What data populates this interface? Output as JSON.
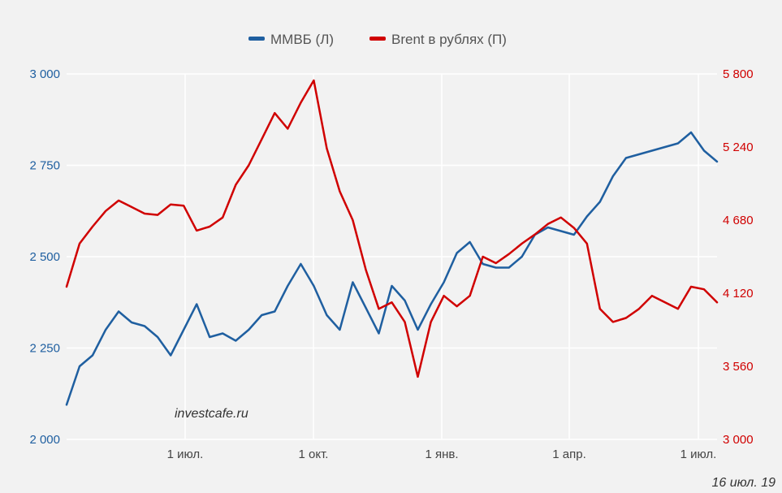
{
  "chart_data": {
    "type": "line",
    "x_tick_labels": [
      "1 июл.",
      "1 окт.",
      "1 янв.",
      "1 апр.",
      "1 июл."
    ],
    "left_axis": {
      "ylim": [
        2000,
        3000
      ],
      "ticks": [
        2000,
        2250,
        2500,
        2750,
        3000
      ],
      "tick_labels": [
        "2 000",
        "2 250",
        "2 500",
        "2 750",
        "3 000"
      ],
      "color": "#1f5fa0"
    },
    "right_axis": {
      "ylim": [
        3000,
        5800
      ],
      "ticks": [
        3000,
        3560,
        4120,
        4680,
        5240,
        5800
      ],
      "tick_labels": [
        "3 000",
        "3 560",
        "4 120",
        "4 680",
        "5 240",
        "5 800"
      ],
      "color": "#d00000"
    },
    "grid": true,
    "legend_position": "top-center",
    "series": [
      {
        "name": "ММВБ (Л)",
        "axis": "left",
        "color": "#1f5fa0",
        "x": [
          0,
          0.02,
          0.04,
          0.06,
          0.08,
          0.1,
          0.12,
          0.14,
          0.16,
          0.18,
          0.2,
          0.22,
          0.24,
          0.26,
          0.28,
          0.3,
          0.32,
          0.34,
          0.36,
          0.38,
          0.4,
          0.42,
          0.44,
          0.46,
          0.48,
          0.5,
          0.52,
          0.54,
          0.56,
          0.58,
          0.6,
          0.62,
          0.64,
          0.66,
          0.68,
          0.7,
          0.72,
          0.74,
          0.76,
          0.78,
          0.8,
          0.82,
          0.84,
          0.86,
          0.88,
          0.9,
          0.92,
          0.94,
          0.96,
          0.98,
          1.0
        ],
        "values": [
          2095,
          2200,
          2230,
          2300,
          2350,
          2320,
          2310,
          2280,
          2230,
          2300,
          2370,
          2280,
          2290,
          2270,
          2300,
          2340,
          2350,
          2420,
          2480,
          2420,
          2340,
          2300,
          2430,
          2360,
          2290,
          2420,
          2380,
          2300,
          2370,
          2430,
          2510,
          2540,
          2480,
          2470,
          2470,
          2500,
          2560,
          2580,
          2570,
          2560,
          2610,
          2650,
          2720,
          2770,
          2780,
          2790,
          2800,
          2810,
          2840,
          2790,
          2760
        ]
      },
      {
        "name": "Brent в рублях (П)",
        "axis": "right",
        "color": "#d00000",
        "x": [
          0,
          0.02,
          0.04,
          0.06,
          0.08,
          0.1,
          0.12,
          0.14,
          0.16,
          0.18,
          0.2,
          0.22,
          0.24,
          0.26,
          0.28,
          0.3,
          0.32,
          0.34,
          0.36,
          0.38,
          0.4,
          0.42,
          0.44,
          0.46,
          0.48,
          0.5,
          0.52,
          0.54,
          0.56,
          0.58,
          0.6,
          0.62,
          0.64,
          0.66,
          0.68,
          0.7,
          0.72,
          0.74,
          0.76,
          0.78,
          0.8,
          0.82,
          0.84,
          0.86,
          0.88,
          0.9,
          0.92,
          0.94,
          0.96,
          0.98,
          1.0
        ],
        "values": [
          4170,
          4500,
          4630,
          4750,
          4830,
          4780,
          4730,
          4720,
          4800,
          4790,
          4600,
          4630,
          4700,
          4950,
          5100,
          5300,
          5500,
          5380,
          5580,
          5750,
          5230,
          4900,
          4680,
          4300,
          4000,
          4050,
          3900,
          3480,
          3900,
          4100,
          4020,
          4100,
          4400,
          4350,
          4420,
          4500,
          4570,
          4650,
          4700,
          4620,
          4500,
          4000,
          3900,
          3930,
          4000,
          4100,
          4050,
          4000,
          4170,
          4150,
          4050
        ]
      }
    ]
  },
  "watermark": "investcafe.ru",
  "date_label": "16 июл. 19"
}
